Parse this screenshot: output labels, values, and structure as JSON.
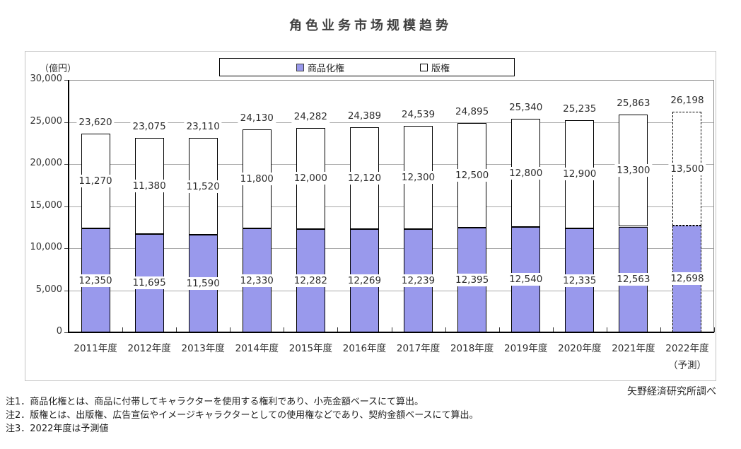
{
  "title": "角色业务市场规模趋势",
  "unit_label": "（億円）",
  "source": "矢野経済研究所調べ",
  "notes": [
    "注1．商品化権とは、商品に付帯してキャラクターを使用する権利であり、小売金額ベースにて算出。",
    "注2．版権とは、出版権、広告宣伝やイメージキャラクターとしての使用権などであり、契約金額ベースにて算出。",
    "注3．2022年度は予測値"
  ],
  "colors": {
    "merchandising_fill": "#9999ec",
    "copyright_fill": "#ffffff",
    "bar_border": "#000000",
    "gridline": "#a8a8a8"
  },
  "chart_data": {
    "type": "bar",
    "stacked": true,
    "title": "角色业务市场规模趋势",
    "ylabel": "（億円）",
    "ylim": [
      0,
      30000
    ],
    "ytick_interval": 5000,
    "yticks": [
      "30,000",
      "25,000",
      "20,000",
      "15,000",
      "10,000",
      "5,000",
      "0"
    ],
    "grid": true,
    "legend_position": "top",
    "categories": [
      "2011年度",
      "2012年度",
      "2013年度",
      "2014年度",
      "2015年度",
      "2016年度",
      "2017年度",
      "2018年度",
      "2019年度",
      "2020年度",
      "2021年度",
      "2022年度\n（予測）"
    ],
    "forecast_index": 11,
    "series": [
      {
        "name": "商品化権",
        "color": "#9999ec",
        "values": [
          12350,
          11695,
          11590,
          12330,
          12282,
          12269,
          12239,
          12395,
          12540,
          12335,
          12563,
          12698
        ]
      },
      {
        "name": "版権",
        "color": "#ffffff",
        "values": [
          11270,
          11380,
          11520,
          11800,
          12000,
          12120,
          12300,
          12500,
          12800,
          12900,
          13300,
          13500
        ]
      }
    ],
    "totals": [
      23620,
      23075,
      23110,
      24130,
      24282,
      24389,
      24539,
      24895,
      25340,
      25235,
      25863,
      26198
    ]
  }
}
